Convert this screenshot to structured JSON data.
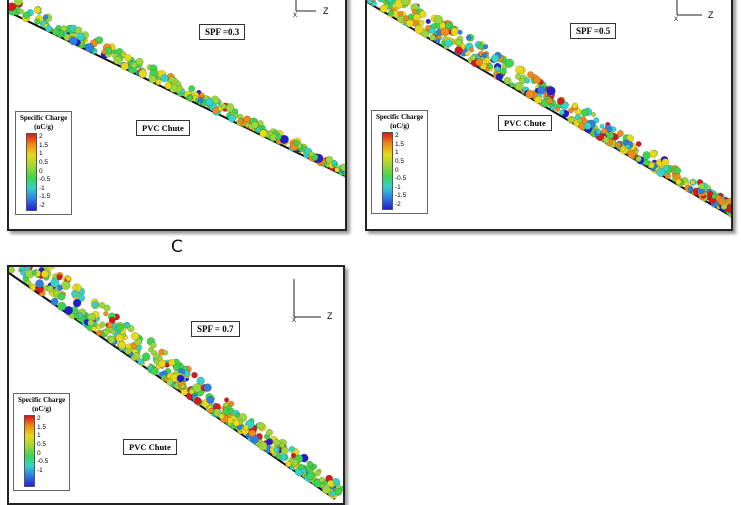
{
  "panels": [
    {
      "id": "a",
      "spf_label": "SPF =0.3",
      "chute_label": "PVC Chute",
      "axis_z": "Z",
      "axis_x": "X",
      "legend": {
        "title": "Specific Charge",
        "unit": "(nC/g)",
        "ticks": [
          "2",
          "1.5",
          "1",
          "0.5",
          "0",
          "-0.5",
          "-1",
          "-1.5",
          "-2"
        ]
      }
    },
    {
      "id": "b",
      "spf_label": "SPF =0.5",
      "chute_label": "PVC Chute",
      "axis_z": "Z",
      "axis_x": "X",
      "legend": {
        "title": "Specific Charge",
        "unit": "(nC/g)",
        "ticks": [
          "2",
          "1.5",
          "1",
          "0.5",
          "0",
          "-0.5",
          "-1",
          "-1.5",
          "-2"
        ]
      }
    },
    {
      "id": "c",
      "caption": "C",
      "spf_label": "SPF = 0.7",
      "chute_label": "PVC Chute",
      "axis_z": "Z",
      "axis_x": "X",
      "legend": {
        "title": "Specific Charge",
        "unit": "(nC/g)",
        "ticks": [
          "2",
          "1.5",
          "1",
          "0.5",
          "0",
          "-0.5",
          "-1"
        ]
      }
    }
  ],
  "colors": {
    "charge_scale": [
      "#d7191c",
      "#f08a1b",
      "#e6d81b",
      "#9bd63c",
      "#3fd34f",
      "#35d2c8",
      "#2f7fe3",
      "#2420c9"
    ],
    "chute_line": "#111111"
  }
}
